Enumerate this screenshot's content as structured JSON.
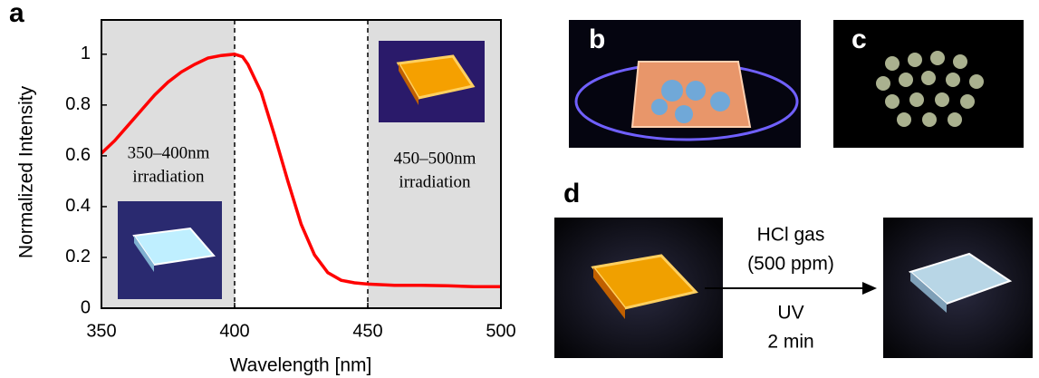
{
  "chart_data": {
    "type": "line",
    "x_label": "Wavelength [nm]",
    "y_label": "Normalized Intensity",
    "x": [
      350,
      355,
      360,
      365,
      370,
      375,
      380,
      385,
      390,
      395,
      400,
      403,
      405,
      410,
      415,
      420,
      425,
      430,
      435,
      440,
      445,
      450,
      460,
      470,
      480,
      490,
      500
    ],
    "values": [
      0.61,
      0.66,
      0.72,
      0.78,
      0.84,
      0.89,
      0.93,
      0.96,
      0.985,
      0.995,
      1.0,
      0.99,
      0.96,
      0.85,
      0.68,
      0.5,
      0.33,
      0.21,
      0.14,
      0.11,
      0.1,
      0.095,
      0.09,
      0.09,
      0.088,
      0.085,
      0.085
    ],
    "color": "#ff0000",
    "xlim": [
      350,
      500
    ],
    "ylim": [
      0,
      1.135
    ],
    "xticks": [
      350,
      400,
      450,
      500
    ],
    "yticks": [
      0,
      0.2,
      0.4,
      0.6,
      0.8,
      1
    ],
    "shaded_ranges": [
      [
        350,
        400
      ],
      [
        450,
        500
      ]
    ],
    "shade_color": "#dedede",
    "annotations": [
      {
        "lines": [
          "350–400nm",
          "irradiation"
        ]
      },
      {
        "lines": [
          "450–500nm",
          "irradiation"
        ]
      }
    ]
  },
  "panel_labels": [
    "a",
    "b",
    "c",
    "d"
  ],
  "arrow_labels": {
    "above": [
      "HCl gas",
      "(500 ppm)"
    ],
    "below": [
      "UV",
      "2 min"
    ]
  }
}
